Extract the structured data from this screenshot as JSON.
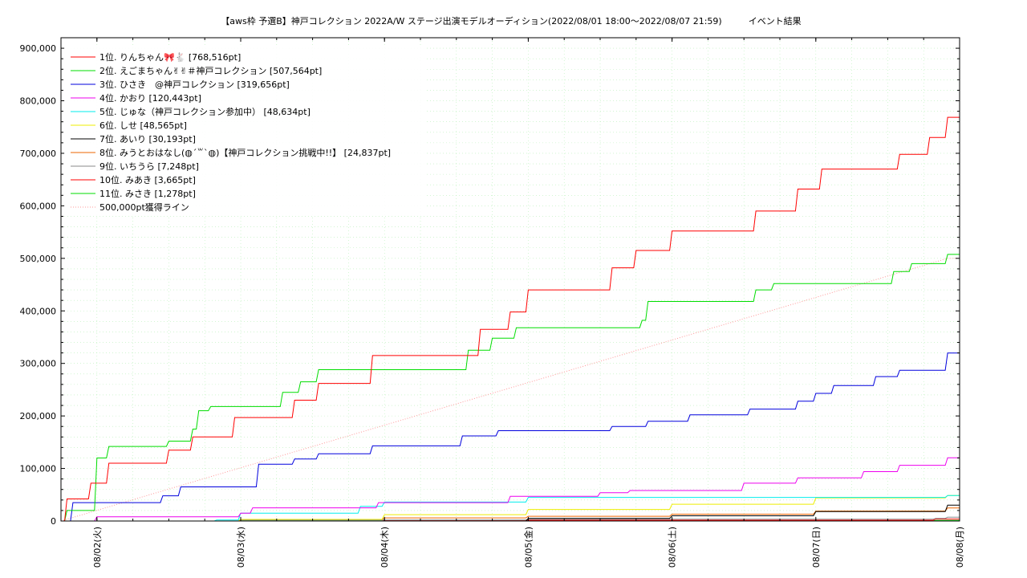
{
  "chart_data": {
    "type": "line",
    "title": "【aws枠 予選B】神戸コレクション 2022A/W ステージ出演モデルオーディション(2022/08/01 18:00〜2022/08/07 21:59)　　　イベント結果",
    "xlabel": "",
    "ylabel": "",
    "ylim": [
      0,
      920000
    ],
    "xlim": [
      "2022-08-01 18:00",
      "2022-08-08 00:00"
    ],
    "grid": true,
    "legend_position": "top-left",
    "x_tick_labels": [
      "08/02(火)",
      "08/03(水)",
      "08/04(木)",
      "08/05(金)",
      "08/06(土)",
      "08/07(日)",
      "08/08(月)"
    ],
    "y_tick_labels": [
      "0",
      "100,000",
      "200,000",
      "300,000",
      "400,000",
      "500,000",
      "600,000",
      "700,000",
      "800,000",
      "900,000"
    ],
    "y_ticks": [
      0,
      100000,
      200000,
      300000,
      400000,
      500000,
      600000,
      700000,
      800000,
      900000
    ],
    "series": [
      {
        "name": "1位. りんちゃん🎀🐇 [768,516pt]",
        "color": "#ff0000",
        "dash": "",
        "points": [
          [
            "2022-08-01 18:00",
            0
          ],
          [
            "2022-08-01 19:00",
            42000
          ],
          [
            "2022-08-01 23:00",
            72000
          ],
          [
            "2022-08-02 02:00",
            110000
          ],
          [
            "2022-08-02 12:00",
            135000
          ],
          [
            "2022-08-02 16:00",
            160000
          ],
          [
            "2022-08-02 23:00",
            197000
          ],
          [
            "2022-08-03 09:00",
            230000
          ],
          [
            "2022-08-03 13:00",
            262000
          ],
          [
            "2022-08-03 22:00",
            315000
          ],
          [
            "2022-08-04 16:00",
            365000
          ],
          [
            "2022-08-04 21:00",
            398000
          ],
          [
            "2022-08-05 00:00",
            440000
          ],
          [
            "2022-08-05 14:00",
            482000
          ],
          [
            "2022-08-05 18:00",
            515000
          ],
          [
            "2022-08-06 00:00",
            552000
          ],
          [
            "2022-08-06 14:00",
            590000
          ],
          [
            "2022-08-06 21:00",
            632000
          ],
          [
            "2022-08-07 01:00",
            670000
          ],
          [
            "2022-08-07 14:00",
            698000
          ],
          [
            "2022-08-07 19:00",
            730000
          ],
          [
            "2022-08-07 22:00",
            768516
          ],
          [
            "2022-08-08 00:00",
            768516
          ]
        ]
      },
      {
        "name": "2位. えごまちゃん✌✌＃神戸コレクション [507,564pt]",
        "color": "#00dd00",
        "dash": "",
        "points": [
          [
            "2022-08-01 18:00",
            0
          ],
          [
            "2022-08-01 19:00",
            20000
          ],
          [
            "2022-08-02 00:00",
            120000
          ],
          [
            "2022-08-02 02:00",
            142000
          ],
          [
            "2022-08-02 12:00",
            152000
          ],
          [
            "2022-08-02 16:00",
            175000
          ],
          [
            "2022-08-02 17:00",
            210000
          ],
          [
            "2022-08-02 19:00",
            218000
          ],
          [
            "2022-08-03 07:00",
            245000
          ],
          [
            "2022-08-03 10:00",
            265000
          ],
          [
            "2022-08-03 13:00",
            288000
          ],
          [
            "2022-08-04 14:00",
            325000
          ],
          [
            "2022-08-04 18:00",
            348000
          ],
          [
            "2022-08-04 22:00",
            368000
          ],
          [
            "2022-08-05 19:00",
            382000
          ],
          [
            "2022-08-05 20:00",
            418000
          ],
          [
            "2022-08-06 14:00",
            440000
          ],
          [
            "2022-08-06 17:00",
            452000
          ],
          [
            "2022-08-07 13:00",
            475000
          ],
          [
            "2022-08-07 16:00",
            490000
          ],
          [
            "2022-08-07 22:00",
            507564
          ],
          [
            "2022-08-08 00:00",
            507564
          ]
        ]
      },
      {
        "name": "3位. ひさき　@神戸コレクション [319,656pt]",
        "color": "#0000dd",
        "dash": "",
        "points": [
          [
            "2022-08-01 18:00",
            0
          ],
          [
            "2022-08-01 20:00",
            35000
          ],
          [
            "2022-08-02 11:00",
            48000
          ],
          [
            "2022-08-02 14:00",
            65000
          ],
          [
            "2022-08-03 03:00",
            108000
          ],
          [
            "2022-08-03 09:00",
            118000
          ],
          [
            "2022-08-03 13:00",
            128000
          ],
          [
            "2022-08-03 22:00",
            143000
          ],
          [
            "2022-08-04 13:00",
            162000
          ],
          [
            "2022-08-04 19:00",
            172000
          ],
          [
            "2022-08-05 14:00",
            180000
          ],
          [
            "2022-08-05 20:00",
            190000
          ],
          [
            "2022-08-06 03:00",
            202000
          ],
          [
            "2022-08-06 13:00",
            213000
          ],
          [
            "2022-08-06 21:00",
            228000
          ],
          [
            "2022-08-07 00:00",
            243000
          ],
          [
            "2022-08-07 03:00",
            258000
          ],
          [
            "2022-08-07 10:00",
            275000
          ],
          [
            "2022-08-07 14:00",
            287000
          ],
          [
            "2022-08-07 22:00",
            319656
          ],
          [
            "2022-08-08 00:00",
            319656
          ]
        ]
      },
      {
        "name": "4位. かおり [120,443pt]",
        "color": "#ee00ee",
        "dash": "",
        "points": [
          [
            "2022-08-01 18:00",
            0
          ],
          [
            "2022-08-02 00:00",
            8000
          ],
          [
            "2022-08-03 00:00",
            15000
          ],
          [
            "2022-08-03 02:00",
            25000
          ],
          [
            "2022-08-03 23:00",
            35000
          ],
          [
            "2022-08-04 21:00",
            47000
          ],
          [
            "2022-08-05 12:00",
            54000
          ],
          [
            "2022-08-05 17:00",
            58000
          ],
          [
            "2022-08-06 12:00",
            72000
          ],
          [
            "2022-08-06 21:00",
            82000
          ],
          [
            "2022-08-07 08:00",
            94000
          ],
          [
            "2022-08-07 14:00",
            106000
          ],
          [
            "2022-08-07 22:00",
            120443
          ],
          [
            "2022-08-08 00:00",
            120443
          ]
        ]
      },
      {
        "name": "5位. じゅな（神戸コレクション参加中） [48,634pt]",
        "color": "#00eeee",
        "dash": "",
        "points": [
          [
            "2022-08-01 18:00",
            0
          ],
          [
            "2022-08-02 20:00",
            2000
          ],
          [
            "2022-08-03 00:00",
            15000
          ],
          [
            "2022-08-03 20:00",
            28000
          ],
          [
            "2022-08-04 00:00",
            36000
          ],
          [
            "2022-08-05 00:00",
            45000
          ],
          [
            "2022-08-07 22:00",
            48634
          ],
          [
            "2022-08-08 00:00",
            48634
          ]
        ]
      },
      {
        "name": "6位. しせ [48,565pt]",
        "color": "#eeee00",
        "dash": "",
        "points": [
          [
            "2022-08-01 18:00",
            0
          ],
          [
            "2022-08-03 00:00",
            3000
          ],
          [
            "2022-08-04 00:00",
            12000
          ],
          [
            "2022-08-05 00:00",
            22000
          ],
          [
            "2022-08-06 00:00",
            32000
          ],
          [
            "2022-08-07 00:00",
            44000
          ],
          [
            "2022-08-07 22:00",
            48565
          ],
          [
            "2022-08-08 00:00",
            48565
          ]
        ]
      },
      {
        "name": "7位. あいり [30,193pt]",
        "color": "#000000",
        "dash": "",
        "points": [
          [
            "2022-08-01 18:00",
            0
          ],
          [
            "2022-08-04 18:00",
            0
          ],
          [
            "2022-08-05 00:00",
            5000
          ],
          [
            "2022-08-06 00:00",
            10000
          ],
          [
            "2022-08-07 00:00",
            18000
          ],
          [
            "2022-08-07 22:00",
            30193
          ],
          [
            "2022-08-08 00:00",
            30193
          ]
        ]
      },
      {
        "name": "8位. みうとおはなし(◍´꒳`◍)【神戸コレクション挑戦中!!】 [24,837pt]",
        "color": "#ee6600",
        "dash": "",
        "points": [
          [
            "2022-08-01 18:00",
            0
          ],
          [
            "2022-08-03 00:00",
            3000
          ],
          [
            "2022-08-04 00:00",
            6000
          ],
          [
            "2022-08-05 00:00",
            9000
          ],
          [
            "2022-08-06 00:00",
            13000
          ],
          [
            "2022-08-07 00:00",
            19000
          ],
          [
            "2022-08-07 22:00",
            24837
          ],
          [
            "2022-08-08 00:00",
            24837
          ]
        ]
      },
      {
        "name": "9位. いちうら [7,248pt]",
        "color": "#888888",
        "dash": "",
        "points": [
          [
            "2022-08-01 18:00",
            0
          ],
          [
            "2022-08-03 00:00",
            2000
          ],
          [
            "2022-08-05 00:00",
            3500
          ],
          [
            "2022-08-07 20:00",
            5000
          ],
          [
            "2022-08-07 22:00",
            7248
          ],
          [
            "2022-08-08 00:00",
            7248
          ]
        ]
      },
      {
        "name": "10位. みあき [3,665pt]",
        "color": "#ff0000",
        "dash": "",
        "points": [
          [
            "2022-08-01 18:00",
            0
          ],
          [
            "2022-08-04 00:00",
            1500
          ],
          [
            "2022-08-07 20:00",
            3665
          ],
          [
            "2022-08-08 00:00",
            3665
          ]
        ]
      },
      {
        "name": "11位. みさき [1,278pt]",
        "color": "#00dd00",
        "dash": "",
        "points": [
          [
            "2022-08-01 18:00",
            0
          ],
          [
            "2022-08-03 00:00",
            500
          ],
          [
            "2022-08-07 20:00",
            1278
          ],
          [
            "2022-08-08 00:00",
            1278
          ]
        ]
      },
      {
        "name": "500,000pt獲得ライン",
        "color": "#ff9999",
        "dash": "1,2",
        "points": [
          [
            "2022-08-01 18:00",
            0
          ],
          [
            "2022-08-07 22:00",
            500000
          ],
          [
            "2022-08-08 00:00",
            500000
          ]
        ]
      }
    ]
  }
}
